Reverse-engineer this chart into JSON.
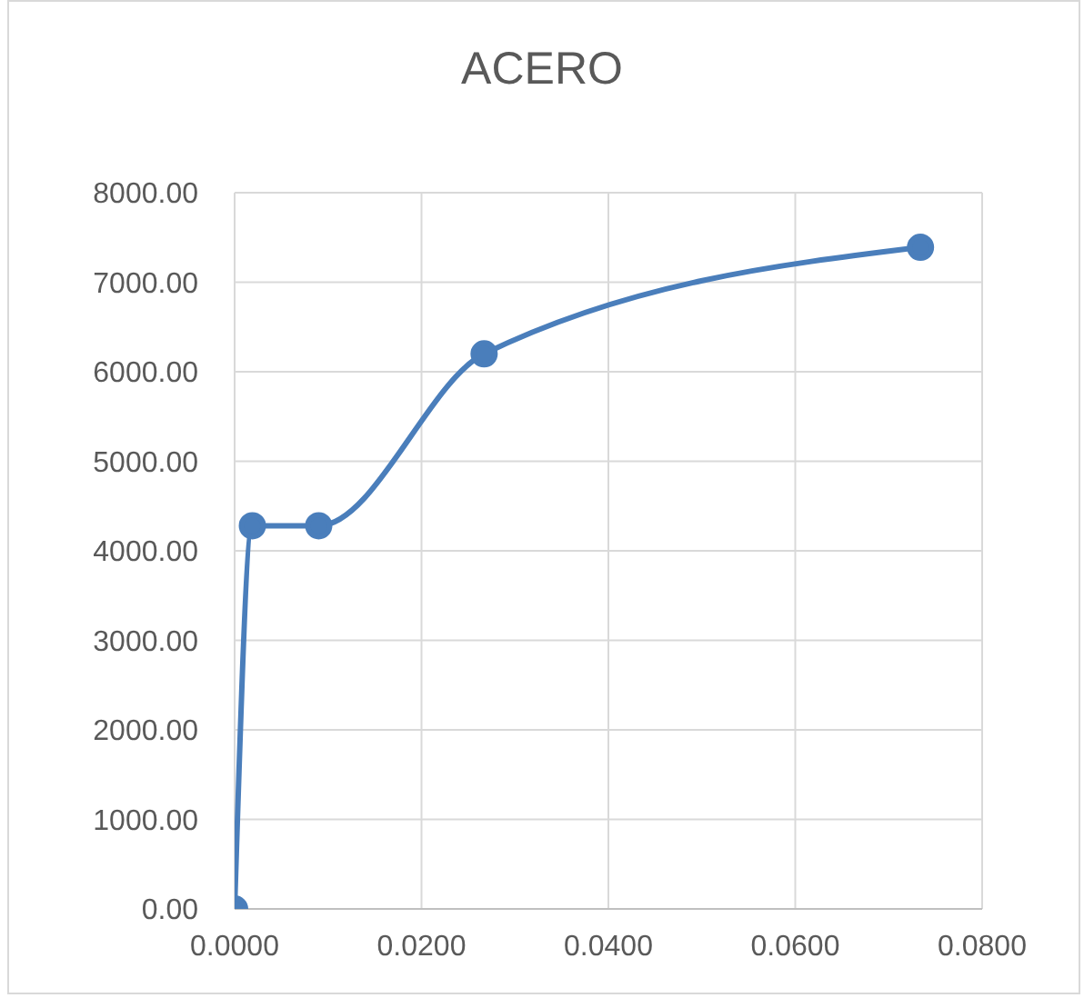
{
  "chart_data": {
    "type": "line",
    "title": "ACERO",
    "x": [
      0,
      0.0019,
      0.009,
      0.0267,
      0.0734
    ],
    "series": [
      {
        "color": "#4a7ebb",
        "values": [
          0,
          4280,
          4280,
          6200,
          7390
        ]
      }
    ],
    "xlim": [
      0,
      0.08
    ],
    "xticks": [
      {
        "value": 0,
        "label": "0.0000"
      },
      {
        "value": 0.02,
        "label": "0.0200"
      },
      {
        "value": 0.04,
        "label": "0.0400"
      },
      {
        "value": 0.06,
        "label": "0.0600"
      },
      {
        "value": 0.08,
        "label": "0.0800"
      }
    ],
    "ylim": [
      0,
      8000
    ],
    "yticks": [
      {
        "value": 0,
        "label": "0.00"
      },
      {
        "value": 1000,
        "label": "1000.00"
      },
      {
        "value": 2000,
        "label": "2000.00"
      },
      {
        "value": 3000,
        "label": "3000.00"
      },
      {
        "value": 4000,
        "label": "4000.00"
      },
      {
        "value": 5000,
        "label": "5000.00"
      },
      {
        "value": 6000,
        "label": "6000.00"
      },
      {
        "value": 7000,
        "label": "7000.00"
      },
      {
        "value": 8000,
        "label": "8000.00"
      }
    ],
    "grid": true,
    "marker": "circle",
    "line_style": "solid"
  }
}
